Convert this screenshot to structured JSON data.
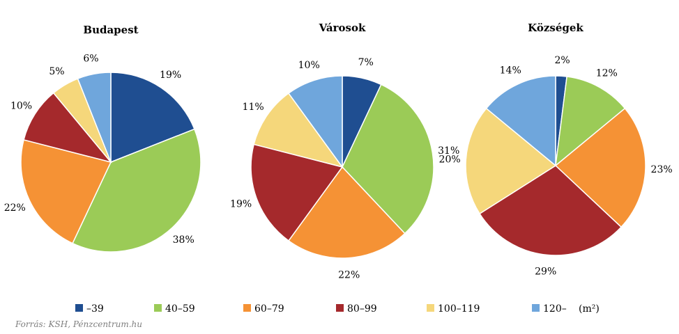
{
  "legend_categories": [
    "–39",
    "40–59",
    "60–79",
    "80–99",
    "100–119",
    "120–"
  ],
  "colors": [
    "#1f4e91",
    "#9bcb57",
    "#f59235",
    "#a5292c",
    "#f5d77b",
    "#6fa6dc"
  ],
  "unit_label": "(m²)",
  "source": "Forrás: KSH, Pénzcentrum.hu",
  "chart_data": [
    {
      "type": "pie",
      "title": "Budapest",
      "categories": [
        "–39",
        "40–59",
        "60–79",
        "80–99",
        "100–119",
        "120–"
      ],
      "values": [
        19,
        38,
        22,
        10,
        5,
        6
      ],
      "labels": [
        "19%",
        "38%",
        "22%",
        "10%",
        "5%",
        "6%"
      ]
    },
    {
      "type": "pie",
      "title": "Városok",
      "categories": [
        "–39",
        "40–59",
        "60–79",
        "80–99",
        "100–119",
        "120–"
      ],
      "values": [
        7,
        31,
        22,
        19,
        11,
        10
      ],
      "labels": [
        "7%",
        "31%",
        "22%",
        "19%",
        "11%",
        "10%"
      ]
    },
    {
      "type": "pie",
      "title": "Községek",
      "categories": [
        "–39",
        "40–59",
        "60–79",
        "80–99",
        "100–119",
        "120–"
      ],
      "values": [
        2,
        12,
        23,
        29,
        20,
        14
      ],
      "labels": [
        "2%",
        "12%",
        "23%",
        "29%",
        "20%",
        "14%"
      ]
    }
  ]
}
